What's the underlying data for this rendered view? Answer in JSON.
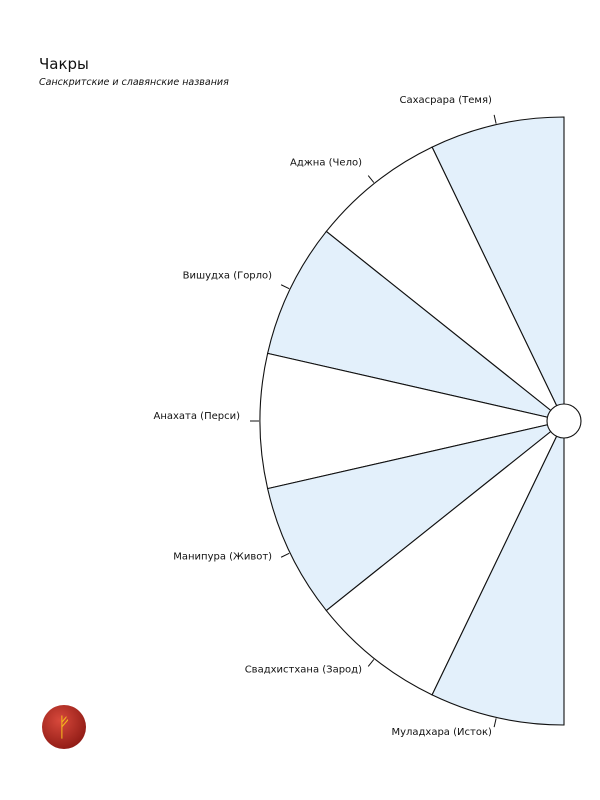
{
  "title": "Чакры",
  "subtitle": "Санскритские и славянские названия",
  "colors": {
    "fill_shaded": "#e3f0fb",
    "fill_plain": "#ffffff",
    "stroke": "#111111",
    "logo_bg": "#b5261e",
    "logo_glyph": "#f2b51c"
  },
  "chakras": [
    {
      "label": "Сахасрара (Темя)",
      "shaded": true
    },
    {
      "label": "Аджна (Чело)",
      "shaded": false
    },
    {
      "label": "Вишудха (Горло)",
      "shaded": true
    },
    {
      "label": "Анахата (Перси)",
      "shaded": false
    },
    {
      "label": "Манипура (Живот)",
      "shaded": true
    },
    {
      "label": "Свадхистхана (Зарод)",
      "shaded": false
    },
    {
      "label": "Муладхара (Исток)",
      "shaded": true
    }
  ],
  "logo": {
    "glyph": "ᚠ",
    "icon": "rune-fehu-icon"
  }
}
